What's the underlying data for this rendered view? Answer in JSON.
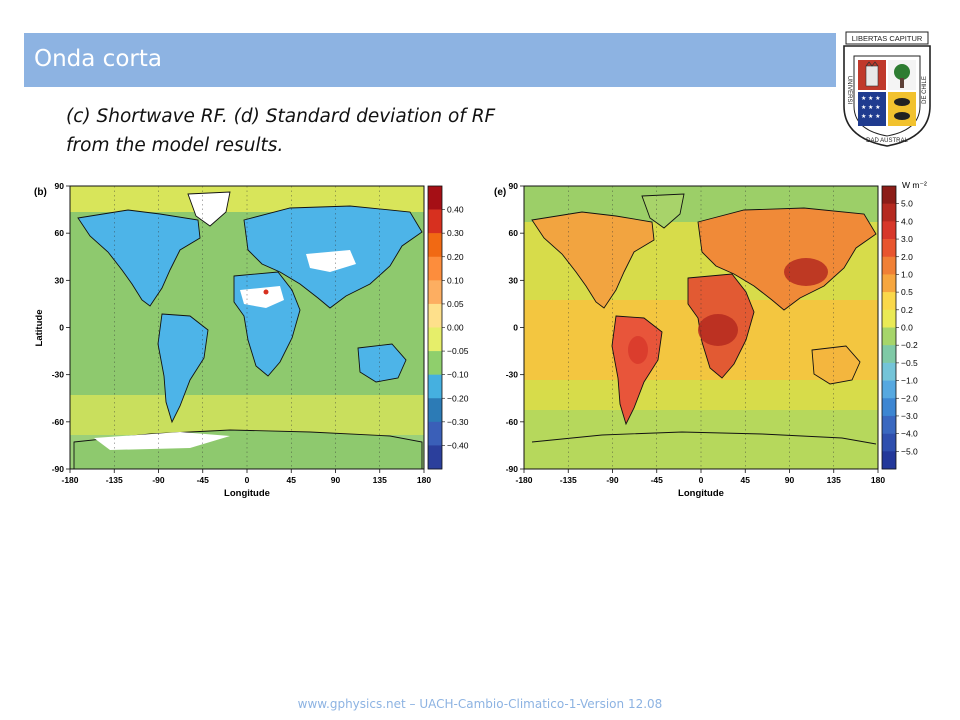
{
  "slide": {
    "title": "Onda corta",
    "caption_line1": "(c) Shortwave RF. (d) Standard deviation of RF",
    "caption_line2": "from the model results.",
    "footer": "www.gphysics.net – UACH-Cambio-Climatico-1-Version 12.08"
  },
  "logo": {
    "banner_text": "LIBERTAS CAPITUR",
    "ring_text_left": "UNIVERSI",
    "ring_text_bottom": "DAD AUSTRAL",
    "ring_text_right": "DE CHILE",
    "icon": "university-shield-icon"
  },
  "maps": [
    {
      "panel_label": "(b)",
      "xlabel": "Longitude",
      "ylabel": "Latitude",
      "x_ticks": [
        "-180",
        "-135",
        "-90",
        "-45",
        "0",
        "45",
        "90",
        "135",
        "180"
      ],
      "y_ticks": [
        "90",
        "60",
        "30",
        "0",
        "-30",
        "-60",
        "-90"
      ],
      "colorbar_unit": "",
      "colorbar_labels": [
        "0.40",
        "0.30",
        "0.20",
        "0.10",
        "0.05",
        "0.00",
        "−0.05",
        "−0.10",
        "−0.20",
        "−0.30",
        "−0.40"
      ],
      "colorbar_colors": [
        "#a50f15",
        "#d7301f",
        "#f16913",
        "#fd8d3c",
        "#fdae61",
        "#fee08b",
        "#e6ee6a",
        "#8fcf6c",
        "#45b0e0",
        "#2c7bb6",
        "#3a5fb8",
        "#2b3f9c"
      ],
      "background_color": "#8ec96e"
    },
    {
      "panel_label": "(e)",
      "xlabel": "Longitude",
      "ylabel": "",
      "x_ticks": [
        "-180",
        "-135",
        "-90",
        "-45",
        "0",
        "45",
        "90",
        "135",
        "180"
      ],
      "y_ticks": [
        "90",
        "60",
        "30",
        "0",
        "-30",
        "-60",
        "-90"
      ],
      "colorbar_unit": "W m⁻²",
      "colorbar_labels": [
        "5.0",
        "4.0",
        "3.0",
        "2.0",
        "1.0",
        "0.5",
        "0.2",
        "0.0",
        "−0.2",
        "−0.5",
        "−1.0",
        "−2.0",
        "−3.0",
        "−4.0",
        "−5.0"
      ],
      "colorbar_colors": [
        "#8c1d18",
        "#b52a20",
        "#d7372a",
        "#e8552f",
        "#f08036",
        "#f6a63e",
        "#fad84a",
        "#eaea55",
        "#a6d56a",
        "#7fc9a6",
        "#74c4d8",
        "#56a8e0",
        "#3d86d2",
        "#3a68c0",
        "#2f4fae",
        "#23389a"
      ],
      "background_color": "#d7dc4a"
    }
  ]
}
